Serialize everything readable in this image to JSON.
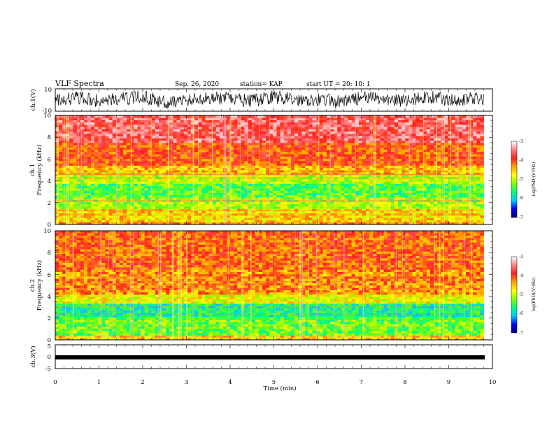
{
  "header": {
    "title": "VLF Spectra",
    "date": "Sep. 26, 2020",
    "station": "station= KAP",
    "start": "start  UT =   20: 10: 1"
  },
  "panels": {
    "ch1_wave": {
      "ylabel": "ch.1(V)",
      "ticks": [
        "10",
        "-10"
      ]
    },
    "ch1_spec": {
      "ylabel_1": "ch.1",
      "ylabel_2": "Frequency  (kHz)"
    },
    "ch2_spec": {
      "ylabel_1": "ch.2",
      "ylabel_2": "Frequency  (kHz)"
    },
    "ch3_wave": {
      "ylabel": "ch.3(V)",
      "ticks": [
        "5",
        "0",
        "-5"
      ]
    }
  },
  "freq_ticks": [
    "10",
    "8",
    "6",
    "4",
    "2",
    "0"
  ],
  "xaxis": {
    "label": "Time  (min)",
    "ticks": [
      "0",
      "1",
      "2",
      "3",
      "4",
      "5",
      "6",
      "7",
      "8",
      "9",
      "10"
    ]
  },
  "colorbar": {
    "label": "log(PSD)(V²/Hz)",
    "ticks": [
      "-3",
      "-4",
      "-5",
      "-6",
      "-7"
    ],
    "colors": [
      "#000080",
      "#0000ff",
      "#00c8ff",
      "#00ff80",
      "#80ff00",
      "#ffff00",
      "#ffa000",
      "#ff2020",
      "#ff8080",
      "#ffffff"
    ]
  },
  "chart_data": [
    {
      "type": "line",
      "name": "ch.1 waveform",
      "ylabel": "ch.1(V)",
      "xlabel": "",
      "xlim": [
        0,
        10
      ],
      "ylim": [
        -10,
        10
      ],
      "x": [
        0,
        0.5,
        1,
        1.5,
        2,
        2.5,
        3,
        3.5,
        4,
        4.5,
        5,
        5.5,
        6,
        6.5,
        7,
        7.5,
        8,
        8.5,
        9,
        9.5,
        9.8
      ],
      "y": [
        0,
        2,
        -1,
        1,
        3,
        -2,
        0,
        2,
        1,
        -1,
        3,
        0,
        1,
        -2,
        2,
        1,
        -1,
        3,
        0,
        1,
        0
      ]
    },
    {
      "type": "heatmap",
      "name": "ch.1 spectrogram",
      "ylabel": "Frequency  (kHz)",
      "xlabel": "",
      "xlim": [
        0,
        10
      ],
      "ylim": [
        0,
        10
      ],
      "data_extent_min": 9.8,
      "bands": [
        {
          "f0": 0,
          "f1": 0.3,
          "v": -4.2
        },
        {
          "f0": 0.3,
          "f1": 1.4,
          "v": -4.6
        },
        {
          "f0": 1.4,
          "f1": 2.4,
          "v": -5.1
        },
        {
          "f0": 2.4,
          "f1": 3.8,
          "v": -5.4
        },
        {
          "f0": 3.8,
          "f1": 4.6,
          "v": -5.0
        },
        {
          "f0": 4.6,
          "f1": 5.5,
          "v": -4.5
        },
        {
          "f0": 5.5,
          "f1": 7.5,
          "v": -4.05
        },
        {
          "f0": 7.5,
          "f1": 10,
          "v": -3.6
        }
      ],
      "colorbar_range": [
        -7,
        -3
      ]
    },
    {
      "type": "heatmap",
      "name": "ch.2 spectrogram",
      "ylabel": "Frequency  (kHz)",
      "xlabel": "",
      "xlim": [
        0,
        10
      ],
      "ylim": [
        0,
        10
      ],
      "data_extent_min": 9.8,
      "bands": [
        {
          "f0": 0,
          "f1": 0.5,
          "v": -4.6
        },
        {
          "f0": 0.5,
          "f1": 2.0,
          "v": -5.3
        },
        {
          "f0": 2.0,
          "f1": 3.3,
          "v": -5.7
        },
        {
          "f0": 3.3,
          "f1": 4.2,
          "v": -4.8
        },
        {
          "f0": 4.2,
          "f1": 6.5,
          "v": -4.3
        },
        {
          "f0": 6.5,
          "f1": 10,
          "v": -4.1
        }
      ],
      "colorbar_range": [
        -7,
        -3
      ]
    },
    {
      "type": "line",
      "name": "ch.3 waveform",
      "ylabel": "ch.3(V)",
      "xlabel": "Time  (min)",
      "xlim": [
        0,
        10
      ],
      "ylim": [
        -5,
        5
      ],
      "x": [
        0,
        9.8
      ],
      "y": [
        1,
        1
      ]
    }
  ]
}
